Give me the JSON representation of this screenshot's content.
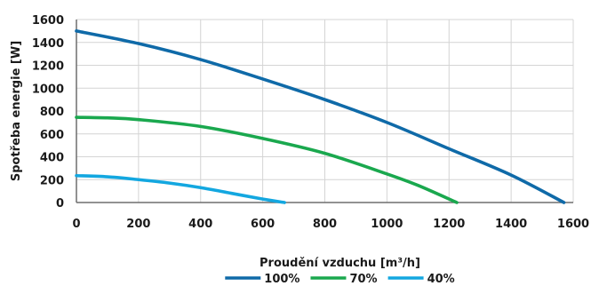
{
  "chart_data": {
    "type": "line",
    "xlabel": "Proudění vzduchu [m³/h]",
    "ylabel": "Spotřeba energie [W]",
    "xlim": [
      0,
      1600
    ],
    "ylim": [
      0,
      1600
    ],
    "x_ticks": [
      "0",
      "200",
      "400",
      "600",
      "800",
      "1000",
      "1200",
      "1400",
      "1600"
    ],
    "y_ticks": [
      "0",
      "200",
      "400",
      "600",
      "800",
      "1000",
      "1200",
      "1400",
      "1600"
    ],
    "grid": true,
    "legend_position": "bottom-center",
    "series": [
      {
        "name": "100%",
        "color": "#0f6aa8",
        "points": [
          [
            0,
            1500
          ],
          [
            200,
            1390
          ],
          [
            400,
            1250
          ],
          [
            600,
            1080
          ],
          [
            800,
            900
          ],
          [
            1000,
            700
          ],
          [
            1200,
            470
          ],
          [
            1400,
            240
          ],
          [
            1570,
            0
          ]
        ]
      },
      {
        "name": "70%",
        "color": "#1aa84e",
        "points": [
          [
            0,
            745
          ],
          [
            100,
            740
          ],
          [
            200,
            725
          ],
          [
            400,
            665
          ],
          [
            600,
            560
          ],
          [
            800,
            430
          ],
          [
            1000,
            250
          ],
          [
            1100,
            150
          ],
          [
            1225,
            0
          ]
        ]
      },
      {
        "name": "40%",
        "color": "#13a7e0",
        "points": [
          [
            0,
            235
          ],
          [
            100,
            225
          ],
          [
            200,
            200
          ],
          [
            300,
            170
          ],
          [
            400,
            130
          ],
          [
            500,
            80
          ],
          [
            600,
            30
          ],
          [
            670,
            0
          ]
        ]
      }
    ]
  }
}
